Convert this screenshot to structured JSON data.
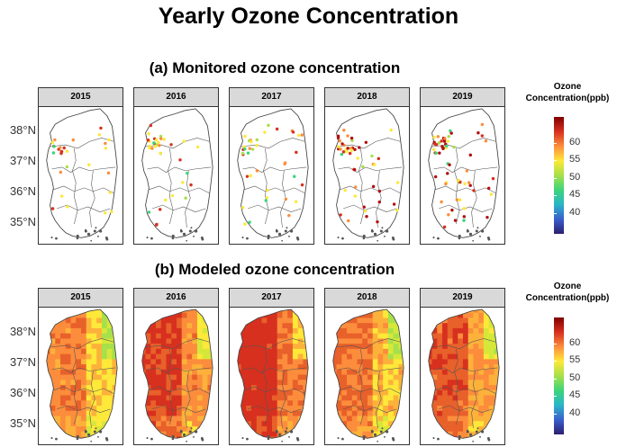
{
  "title": "Yearly Ozone Concentration",
  "sections": [
    {
      "title": "(a) Monitored ozone concentration",
      "type": "monitored"
    },
    {
      "title": "(b) Modeled ozone concentration",
      "type": "modeled"
    }
  ],
  "years": [
    "2015",
    "2016",
    "2017",
    "2018",
    "2019"
  ],
  "y_axis_labels": [
    "38°N",
    "37°N",
    "36°N",
    "35°N"
  ],
  "legend": {
    "title_line1": "Ozone",
    "title_line2": "Concentration(ppb)",
    "ticks": [
      "60",
      "55",
      "50",
      "45",
      "40"
    ],
    "colors": [
      "#7f0000",
      "#d7301f",
      "#fc8d3c",
      "#fee839",
      "#a6e04a",
      "#3cd57a",
      "#2bb5c8",
      "#3a5fcd",
      "#2c1f6e"
    ]
  },
  "colors": {
    "background": "#ffffff",
    "strip": "#d9d9d9",
    "border": "#333333"
  }
}
